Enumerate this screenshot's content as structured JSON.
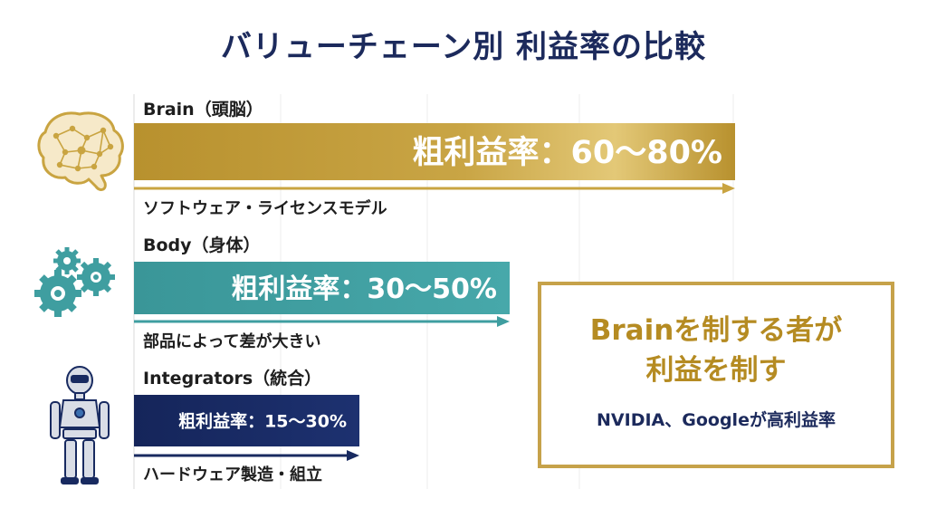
{
  "title": "バリューチェーン別 利益率の比較",
  "chart_data": {
    "type": "bar",
    "orientation": "horizontal",
    "categories": [
      "Brain（頭脳）",
      "Body（身体）",
      "Integrators（統合）"
    ],
    "descriptions": [
      "ソフトウェア・ライセンスモデル",
      "部品によって差が大きい",
      "ハードウェア製造・組立"
    ],
    "range_low": [
      60,
      30,
      15
    ],
    "range_high": [
      80,
      50,
      30
    ],
    "bar_labels": [
      "粗利益率：60〜80%",
      "粗利益率：30〜50%",
      "粗利益率：15〜30%"
    ],
    "icons": [
      "brain-icon",
      "gears-icon",
      "robot-icon"
    ],
    "colors": [
      "#c9a441",
      "#3f9ea0",
      "#182a60"
    ],
    "xlim": [
      0,
      100
    ],
    "grid": true
  },
  "callout": {
    "headline_1": "Brainを制する者が",
    "headline_2": "利益を制す",
    "note": "NVIDIA、Googleが高利益率",
    "border_color": "#c6a24a",
    "headline_color": "#b58b22"
  }
}
